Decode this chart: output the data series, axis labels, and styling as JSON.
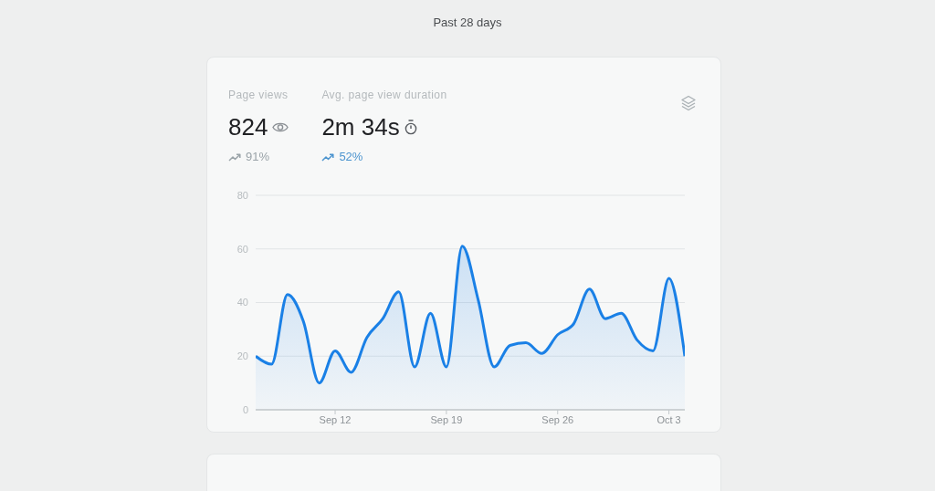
{
  "chart_data": {
    "type": "area",
    "title": "Past 28 days",
    "annotations": [
      "Page views",
      "824",
      "91%",
      "Avg. page view duration",
      "2m 34s",
      "52%"
    ],
    "x": [
      "--09-07",
      "--09-08",
      "--09-09",
      "--09-10",
      "--09-11",
      "--09-12",
      "--09-13",
      "--09-14",
      "--09-15",
      "--09-16",
      "--09-17",
      "--09-18",
      "--09-19",
      "--09-20",
      "--09-21",
      "--09-22",
      "--09-23",
      "--09-24",
      "--09-25",
      "--09-26",
      "--09-27",
      "--09-28",
      "--09-29",
      "--09-30",
      "--10-01",
      "--10-02",
      "--10-03",
      "--10-04"
    ],
    "values": [
      20,
      17,
      43,
      33,
      10,
      22,
      14,
      27,
      34,
      44,
      16,
      36,
      16,
      61,
      41,
      16,
      24,
      25,
      21,
      28,
      32,
      45,
      34,
      36,
      26,
      22,
      49,
      20
    ],
    "color": "#1a80e6",
    "xlim": [
      "--09-07",
      "--10-04"
    ],
    "xticks": [
      {
        "value": "--09-12",
        "label": "Sep 12"
      },
      {
        "value": "--09-19",
        "label": "Sep 19"
      },
      {
        "value": "--09-26",
        "label": "Sep 26"
      },
      {
        "value": "--10-03",
        "label": "Oct 3"
      }
    ],
    "ylim": [
      0,
      80
    ],
    "yticks": [
      0,
      20,
      40,
      60,
      80
    ],
    "grid": "y"
  }
}
